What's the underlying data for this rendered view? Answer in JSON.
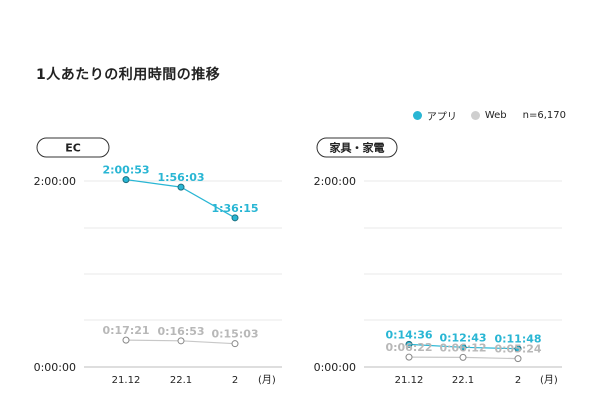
{
  "title": "1人あたりの利用時間の推移",
  "legend": {
    "items": [
      {
        "label": "アプリ",
        "color": "#29b6d4"
      },
      {
        "label": "Web",
        "color": "#cfcfcf"
      }
    ],
    "sample": "n=6,170"
  },
  "colors": {
    "app": "#29b6d4",
    "web": "#c8c8c8",
    "web_text": "#b8b8b8"
  },
  "chart_data": [
    {
      "type": "line",
      "title": "EC",
      "categories": [
        "21.12",
        "22.1",
        "2"
      ],
      "x_unit": "(月)",
      "y_ticks": [
        "2:00:00",
        "0:00:00"
      ],
      "ylim": [
        "0:00:00",
        "2:00:00"
      ],
      "series": [
        {
          "name": "アプリ",
          "values": [
            "2:00:53",
            "1:56:03",
            "1:36:15"
          ]
        },
        {
          "name": "Web",
          "values": [
            "0:17:21",
            "0:16:53",
            "0:15:03"
          ]
        }
      ]
    },
    {
      "type": "line",
      "title": "家具・家電",
      "categories": [
        "21.12",
        "22.1",
        "2"
      ],
      "x_unit": "(月)",
      "y_ticks": [
        "2:00:00",
        "0:00:00"
      ],
      "ylim": [
        "0:00:00",
        "2:00:00"
      ],
      "series": [
        {
          "name": "アプリ",
          "values": [
            "0:14:36",
            "0:12:43",
            "0:11:48"
          ]
        },
        {
          "name": "Web",
          "values": [
            "0:06:22",
            "0:06:12",
            "0:05:24"
          ]
        }
      ]
    }
  ]
}
